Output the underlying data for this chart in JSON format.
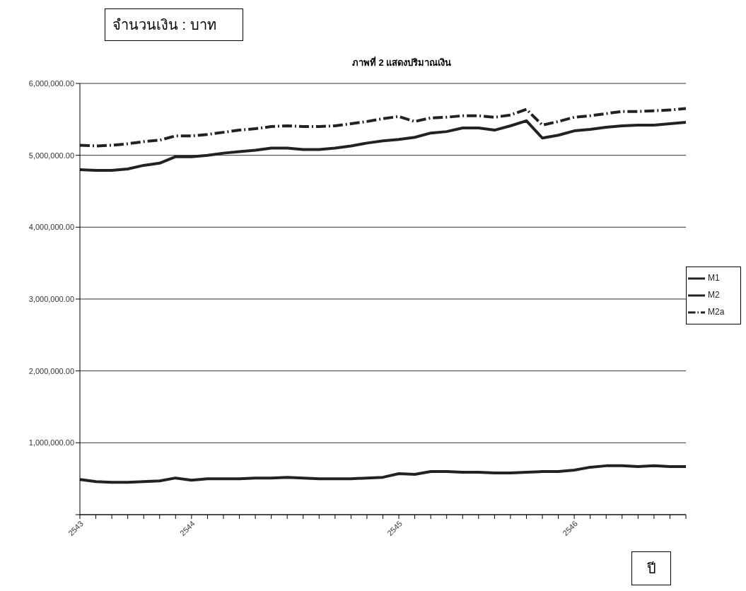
{
  "chart_data": {
    "type": "line",
    "title": "ภาพที่ 2 แสดงปริมาณเงิน",
    "xlabel": "ปี",
    "ylabel": "จำนวนเงิน : บาท",
    "categories": [
      "2543",
      null,
      null,
      null,
      null,
      null,
      null,
      "2544",
      null,
      null,
      null,
      null,
      null,
      null,
      null,
      null,
      null,
      null,
      null,
      null,
      "2545",
      null,
      null,
      null,
      null,
      null,
      null,
      null,
      null,
      null,
      null,
      "2546",
      null,
      null,
      null,
      null,
      null,
      null,
      null
    ],
    "ylim": [
      0,
      6000000
    ],
    "yticks": [
      {
        "value": 0,
        "label": null
      },
      {
        "value": 1000000,
        "label": "1,000,000.00"
      },
      {
        "value": 2000000,
        "label": "2,000,000.00"
      },
      {
        "value": 3000000,
        "label": "3,000,000.00"
      },
      {
        "value": 4000000,
        "label": "4,000,000.00"
      },
      {
        "value": 5000000,
        "label": "5,000,000.00"
      },
      {
        "value": 6000000,
        "label": "6,000,000.00"
      }
    ],
    "grid": "y",
    "legend": "right",
    "series": [
      {
        "name": "M1",
        "color": "#222222",
        "line_style": "solid",
        "values": [
          490000,
          460000,
          450000,
          450000,
          460000,
          470000,
          510000,
          480000,
          500000,
          500000,
          500000,
          510000,
          510000,
          520000,
          510000,
          500000,
          500000,
          500000,
          510000,
          520000,
          570000,
          560000,
          600000,
          600000,
          590000,
          590000,
          580000,
          580000,
          590000,
          600000,
          600000,
          620000,
          660000,
          680000,
          680000,
          670000,
          680000,
          670000,
          670000
        ]
      },
      {
        "name": "M2",
        "color": "#222222",
        "line_style": "solid",
        "values": [
          4800000,
          4790000,
          4790000,
          4810000,
          4860000,
          4890000,
          4980000,
          4980000,
          5000000,
          5030000,
          5050000,
          5070000,
          5100000,
          5100000,
          5080000,
          5080000,
          5100000,
          5130000,
          5170000,
          5200000,
          5220000,
          5250000,
          5310000,
          5330000,
          5380000,
          5380000,
          5350000,
          5410000,
          5480000,
          5240000,
          5280000,
          5340000,
          5360000,
          5390000,
          5410000,
          5420000,
          5420000,
          5440000,
          5460000
        ]
      },
      {
        "name": "M2a",
        "color": "#222222",
        "line_style": "dashed",
        "values": [
          5140000,
          5130000,
          5140000,
          5160000,
          5190000,
          5210000,
          5270000,
          5270000,
          5290000,
          5320000,
          5350000,
          5370000,
          5400000,
          5410000,
          5400000,
          5400000,
          5410000,
          5440000,
          5470000,
          5510000,
          5540000,
          5470000,
          5520000,
          5530000,
          5550000,
          5550000,
          5530000,
          5560000,
          5640000,
          5420000,
          5470000,
          5530000,
          5550000,
          5580000,
          5610000,
          5610000,
          5620000,
          5630000,
          5650000
        ]
      }
    ]
  }
}
